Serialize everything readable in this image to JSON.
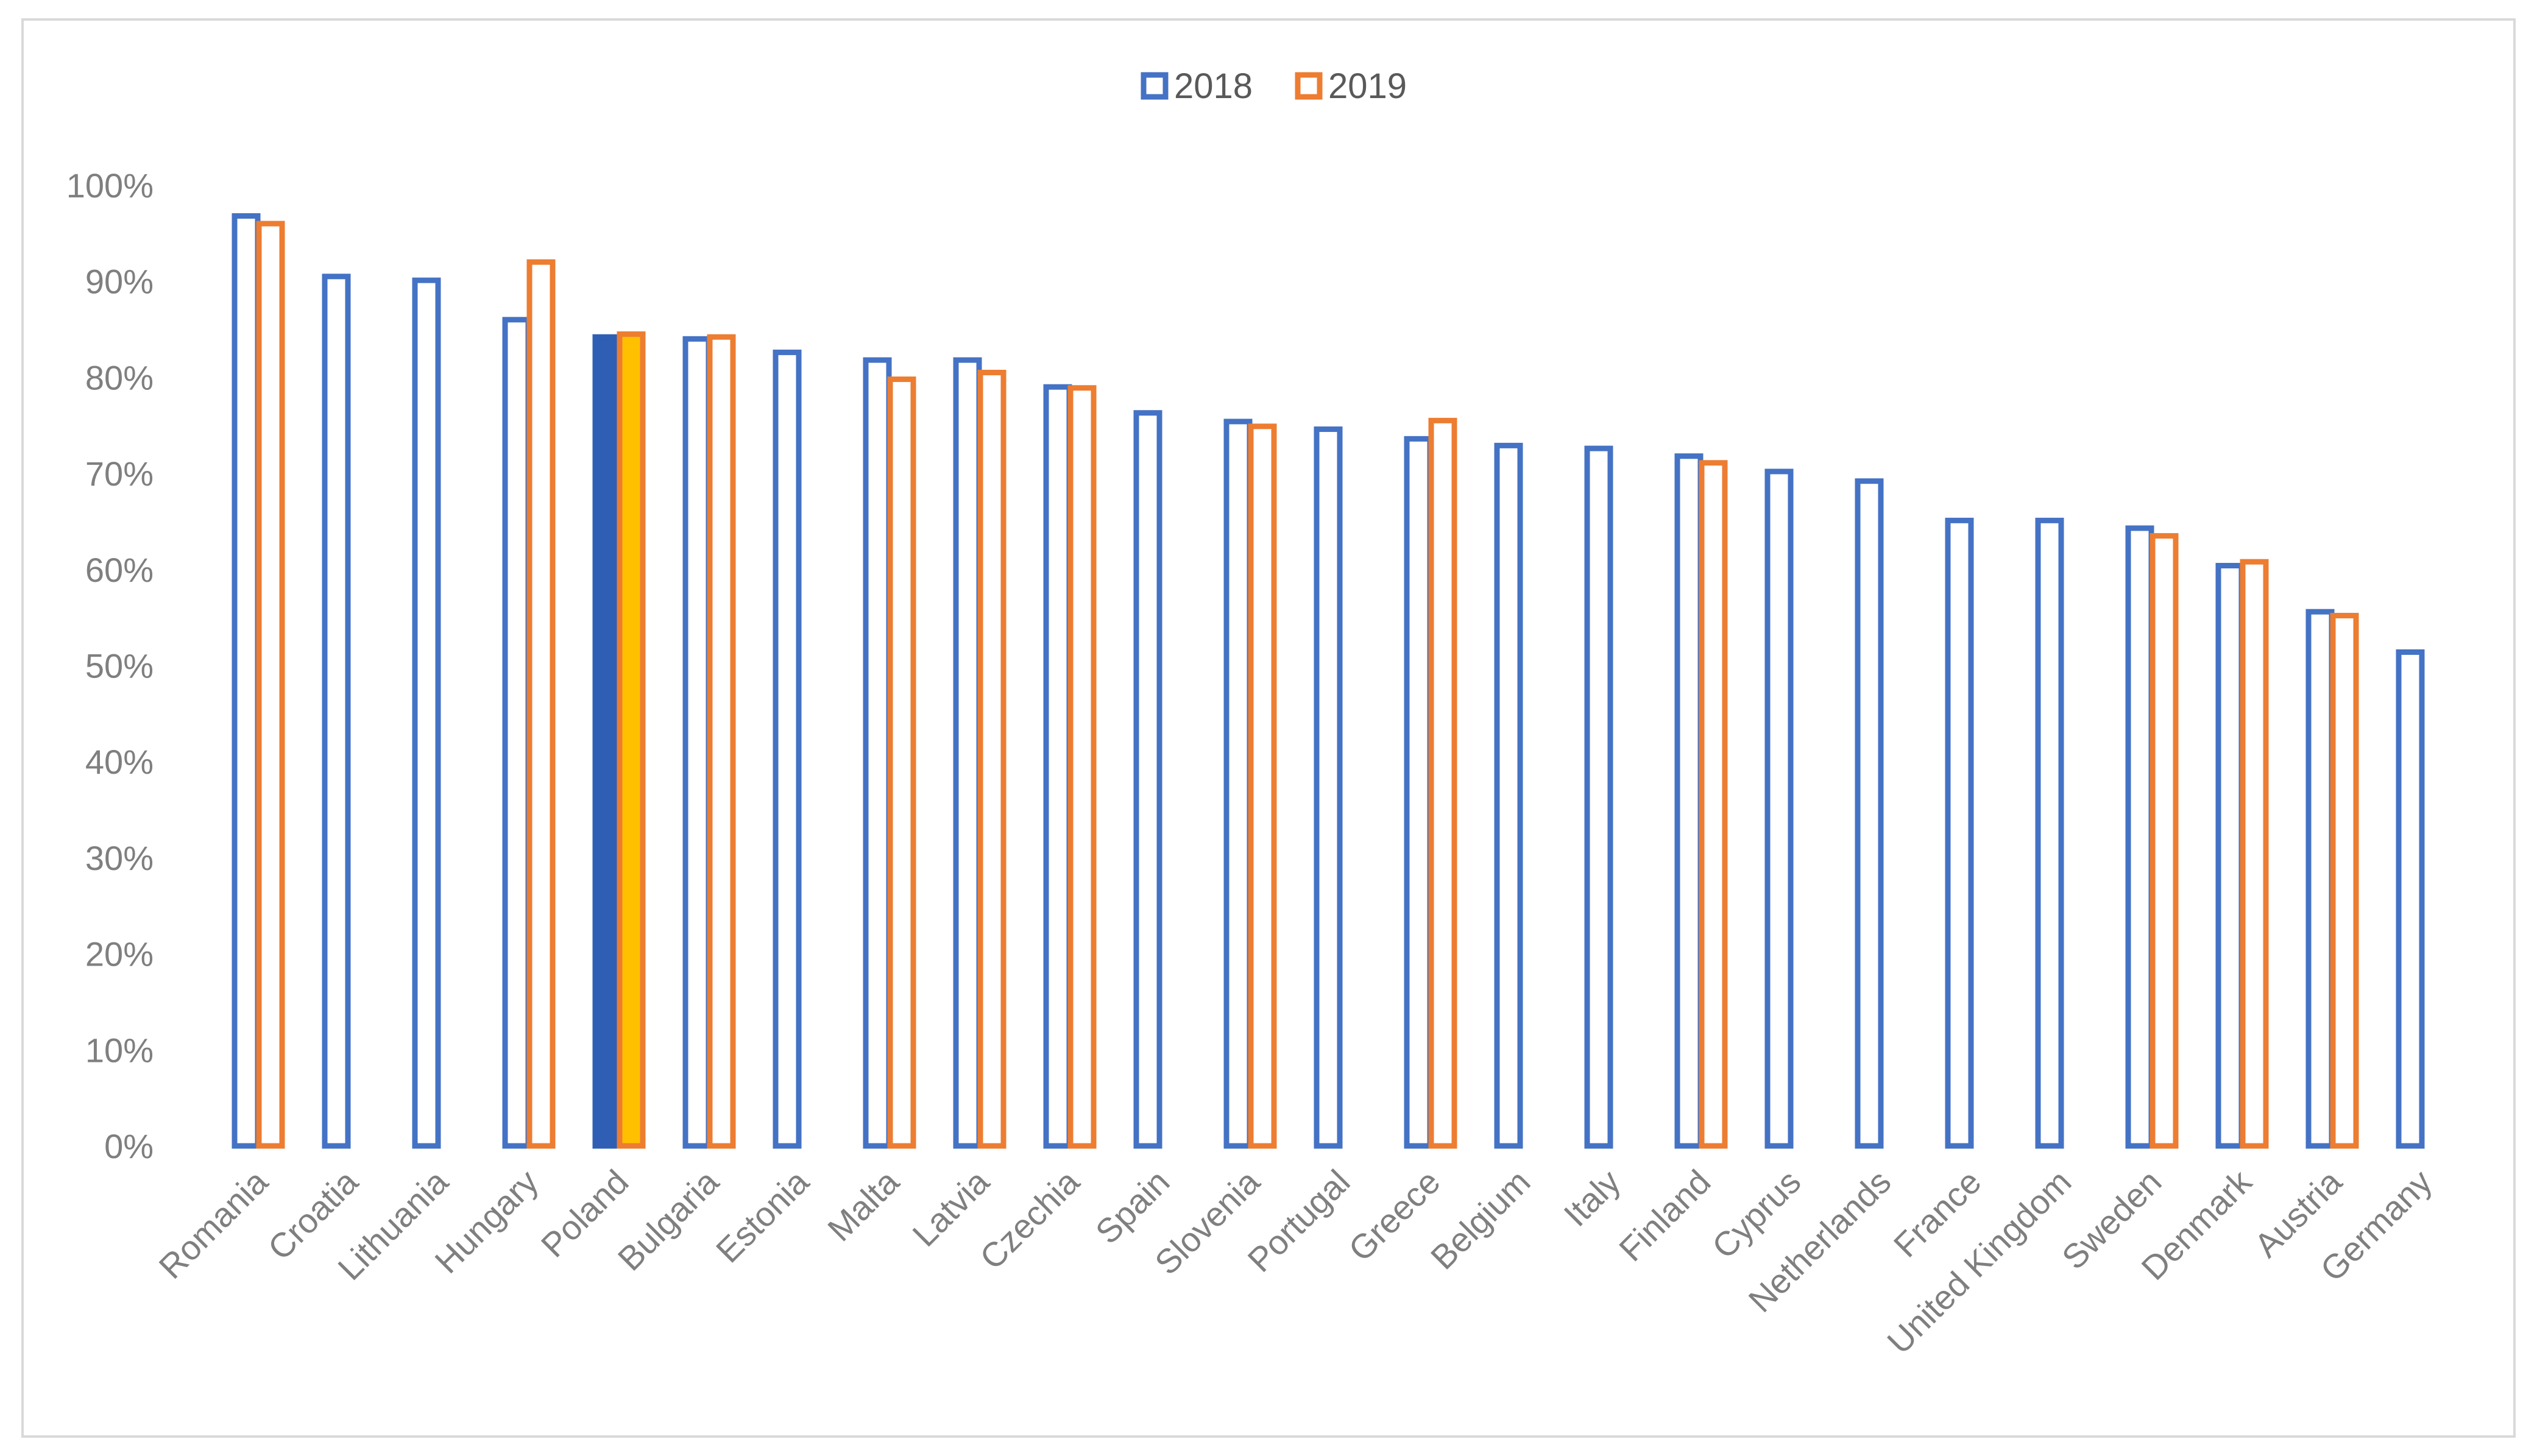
{
  "chart_data": {
    "type": "bar",
    "title": "",
    "xlabel": "",
    "ylabel": "",
    "ylim": [
      0,
      100
    ],
    "yticks": [
      "0%",
      "10%",
      "20%",
      "30%",
      "40%",
      "50%",
      "60%",
      "70%",
      "80%",
      "90%",
      "100%"
    ],
    "legend_position": "top-center",
    "grid": false,
    "categories": [
      "Romania",
      "Croatia",
      "Lithuania",
      "Hungary",
      "Poland",
      "Bulgaria",
      "Estonia",
      "Malta",
      "Latvia",
      "Czechia",
      "Spain",
      "Slovenia",
      "Portugal",
      "Greece",
      "Belgium",
      "Italy",
      "Finland",
      "Cyprus",
      "Netherlands",
      "France",
      "United Kingdom",
      "Sweden",
      "Denmark",
      "Austria",
      "Germany"
    ],
    "highlighted_category": "Poland",
    "series": [
      {
        "name": "2018",
        "color": "#4472c4",
        "highlight_color": "#2e5fb4",
        "values": [
          96.8,
          90.5,
          90.1,
          86.0,
          84.2,
          84.0,
          82.6,
          81.8,
          81.8,
          79.0,
          76.3,
          75.4,
          74.6,
          73.6,
          72.9,
          72.6,
          71.8,
          70.2,
          69.2,
          65.1,
          65.1,
          64.3,
          60.4,
          55.6,
          51.4
        ]
      },
      {
        "name": "2019",
        "color": "#ed7d31",
        "highlight_color": "#ffc000",
        "values": [
          96.0,
          null,
          null,
          92.0,
          84.5,
          84.2,
          null,
          79.8,
          80.5,
          78.9,
          null,
          74.9,
          null,
          75.5,
          null,
          null,
          71.1,
          null,
          null,
          null,
          null,
          63.5,
          60.8,
          55.2,
          null
        ]
      }
    ]
  }
}
